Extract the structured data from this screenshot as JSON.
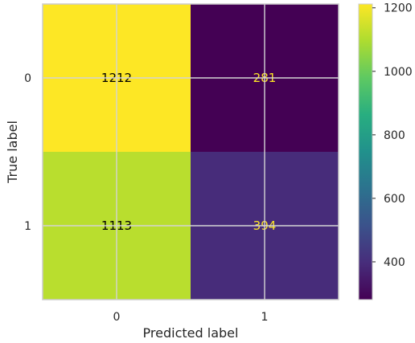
{
  "chart_data": {
    "type": "heatmap",
    "title": "",
    "xlabel": "Predicted label",
    "ylabel": "True label",
    "x_categories": [
      "0",
      "1"
    ],
    "y_categories": [
      "0",
      "1"
    ],
    "values": [
      [
        1212,
        281
      ],
      [
        1113,
        394
      ]
    ],
    "colormap": "viridis",
    "colorbar": {
      "min": 281,
      "max": 1212,
      "ticks": [
        400,
        600,
        800,
        1000,
        1200
      ]
    },
    "grid": true,
    "text_colors": {
      "dark_cell": "#fde725",
      "light_cell": "#000000"
    }
  }
}
